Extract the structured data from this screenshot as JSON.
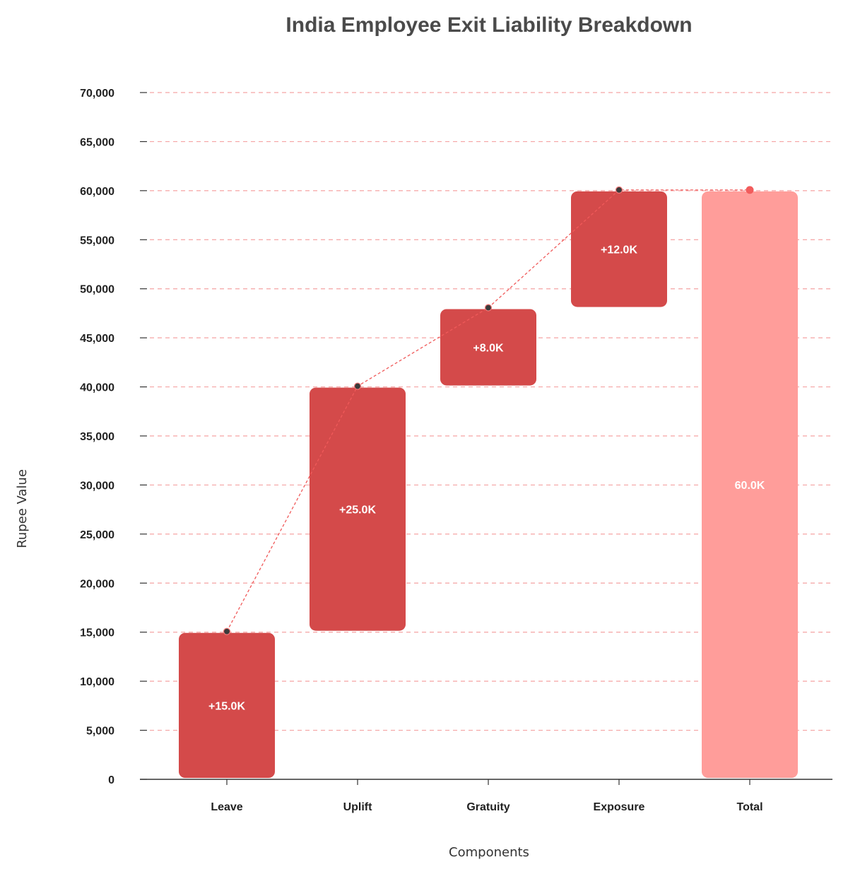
{
  "chart_data": {
    "type": "waterfall",
    "title": "India Employee Exit Liability Breakdown",
    "xlabel": "Components",
    "ylabel": "Rupee Value",
    "ylim": [
      0,
      70000
    ],
    "yticks": [
      0,
      5000,
      10000,
      15000,
      20000,
      25000,
      30000,
      35000,
      40000,
      45000,
      50000,
      55000,
      60000,
      65000,
      70000
    ],
    "ytick_labels": [
      "0",
      "5,000",
      "10,000",
      "15,000",
      "20,000",
      "25,000",
      "30,000",
      "35,000",
      "40,000",
      "45,000",
      "50,000",
      "55,000",
      "60,000",
      "65,000",
      "70,000"
    ],
    "grid": true,
    "categories": [
      "Leave",
      "Uplift",
      "Gratuity",
      "Exposure",
      "Total"
    ],
    "bars": [
      {
        "category": "Leave",
        "start": 0,
        "end": 15000,
        "value": 15000,
        "label": "+15.0K",
        "kind": "increase"
      },
      {
        "category": "Uplift",
        "start": 15000,
        "end": 40000,
        "value": 25000,
        "label": "+25.0K",
        "kind": "increase"
      },
      {
        "category": "Gratuity",
        "start": 40000,
        "end": 48000,
        "value": 8000,
        "label": "+8.0K",
        "kind": "increase"
      },
      {
        "category": "Exposure",
        "start": 48000,
        "end": 60000,
        "value": 12000,
        "label": "+12.0K",
        "kind": "increase"
      },
      {
        "category": "Total",
        "start": 0,
        "end": 60000,
        "value": 60000,
        "label": "60.0K",
        "kind": "total"
      }
    ],
    "colors": {
      "increase": "#d44a4a",
      "total": "#ff9d9a",
      "grid": "#f5a3a3",
      "connector": "#f05a5a",
      "marker": "#3a3a3a",
      "total_marker": "#f25c5c",
      "axis": "#333333"
    }
  }
}
